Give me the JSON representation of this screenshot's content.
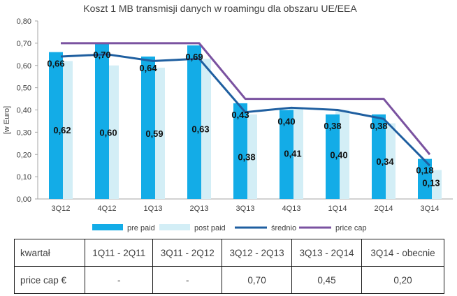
{
  "chart_data": {
    "type": "bar",
    "title": "Koszt 1 MB transmisji danych w roamingu dla obszaru UE/EEA",
    "ylabel": "[w Euro]",
    "xlabel": "",
    "ylim": [
      0,
      0.8
    ],
    "yticks": [
      "0,00",
      "0,10",
      "0,20",
      "0,30",
      "0,40",
      "0,50",
      "0,60",
      "0,70",
      "0,80"
    ],
    "categories": [
      "3Q12",
      "4Q12",
      "1Q13",
      "2Q13",
      "3Q13",
      "4Q13",
      "1Q14",
      "2Q14",
      "3Q14"
    ],
    "series": [
      {
        "name": "pre paid",
        "kind": "bar",
        "color": "#13ace7",
        "values": [
          0.66,
          0.7,
          0.64,
          0.69,
          0.43,
          0.4,
          0.38,
          0.38,
          0.18
        ],
        "labels": [
          "0,66",
          "0,70",
          "0,64",
          "0,69",
          "0,43",
          "0,40",
          "0,38",
          "0,38",
          "0,18"
        ]
      },
      {
        "name": "post paid",
        "kind": "bar",
        "color": "#d3eef6",
        "values": [
          0.62,
          0.6,
          0.59,
          0.63,
          0.38,
          0.41,
          0.4,
          0.34,
          0.13
        ],
        "labels": [
          "0,62",
          "0,60",
          "0,59",
          "0,63",
          "0,38",
          "0,41",
          "0,40",
          "0,34",
          "0,13"
        ]
      },
      {
        "name": "średnio",
        "kind": "line",
        "color": "#1f5fa0",
        "values": [
          0.64,
          0.65,
          0.62,
          0.63,
          0.39,
          0.41,
          0.4,
          0.36,
          0.15
        ]
      },
      {
        "name": "price cap",
        "kind": "line",
        "color": "#7a52a0",
        "values": [
          0.7,
          0.7,
          0.7,
          0.7,
          0.45,
          0.45,
          0.45,
          0.45,
          0.2
        ]
      }
    ],
    "legend": [
      "pre paid",
      "post paid",
      "średnio",
      "price cap"
    ],
    "legend_position": "bottom",
    "grid": false
  },
  "table": {
    "header_label": "kwartał",
    "periods": [
      "1Q11 - 2Q11",
      "3Q11 - 2Q12",
      "3Q12 - 2Q13",
      "3Q13 - 2Q14",
      "3Q14 - obecnie"
    ],
    "row_label": "price cap €",
    "values": [
      "-",
      "-",
      "0,70",
      "0,45",
      "0,20"
    ]
  }
}
